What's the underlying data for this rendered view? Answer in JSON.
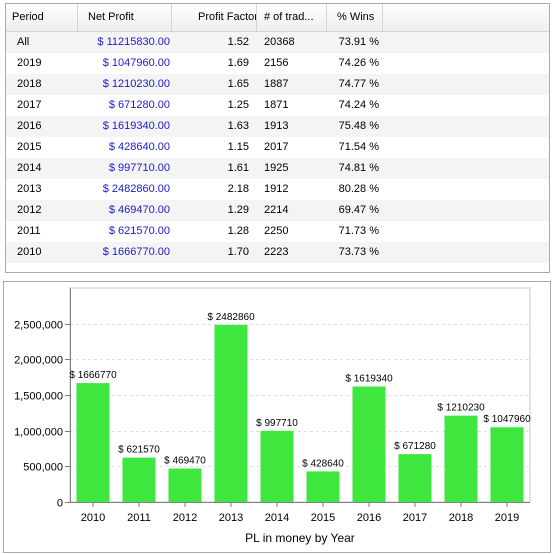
{
  "table": {
    "columns": [
      "Period",
      "Net Profit",
      "Profit Factor",
      "# of trad...",
      "% Wins"
    ],
    "rows": [
      [
        "All",
        "$ 11215830.00",
        "1.52",
        "20368",
        "73.91 %"
      ],
      [
        "2019",
        "$ 1047960.00",
        "1.69",
        "2156",
        "74.26 %"
      ],
      [
        "2018",
        "$ 1210230.00",
        "1.65",
        "1887",
        "74.77 %"
      ],
      [
        "2017",
        "$ 671280.00",
        "1.25",
        "1871",
        "74.24 %"
      ],
      [
        "2016",
        "$ 1619340.00",
        "1.63",
        "1913",
        "75.48 %"
      ],
      [
        "2015",
        "$ 428640.00",
        "1.15",
        "2017",
        "71.54 %"
      ],
      [
        "2014",
        "$ 997710.00",
        "1.61",
        "1925",
        "74.81 %"
      ],
      [
        "2013",
        "$ 2482860.00",
        "2.18",
        "1912",
        "80.28 %"
      ],
      [
        "2012",
        "$ 469470.00",
        "1.29",
        "2214",
        "69.47 %"
      ],
      [
        "2011",
        "$ 621570.00",
        "1.28",
        "2250",
        "71.73 %"
      ],
      [
        "2010",
        "$ 1666770.00",
        "1.70",
        "2223",
        "73.73 %"
      ]
    ]
  },
  "chart_data": {
    "type": "bar",
    "categories": [
      "2010",
      "2011",
      "2012",
      "2013",
      "2014",
      "2015",
      "2016",
      "2017",
      "2018",
      "2019"
    ],
    "values": [
      1666770,
      621570,
      469470,
      2482860,
      997710,
      428640,
      1619340,
      671280,
      1210230,
      1047960
    ],
    "data_labels": [
      "$ 1666770",
      "$ 621570",
      "$ 469470",
      "$ 2482860",
      "$ 997710",
      "$ 428640",
      "$ 1619340",
      "$ 671280",
      "$ 1210230",
      "$ 1047960"
    ],
    "xlabel": "PL in money by Year",
    "ylabel": "",
    "ylim": [
      0,
      3000000
    ],
    "yticks": [
      0,
      500000,
      1000000,
      1500000,
      2000000,
      2500000
    ],
    "ytick_labels": [
      "0",
      "500,000",
      "1,000,000",
      "1,500,000",
      "2,000,000",
      "2,500,000"
    ],
    "grid": "horizontal dashed",
    "bar_color": "#3ee63e"
  }
}
